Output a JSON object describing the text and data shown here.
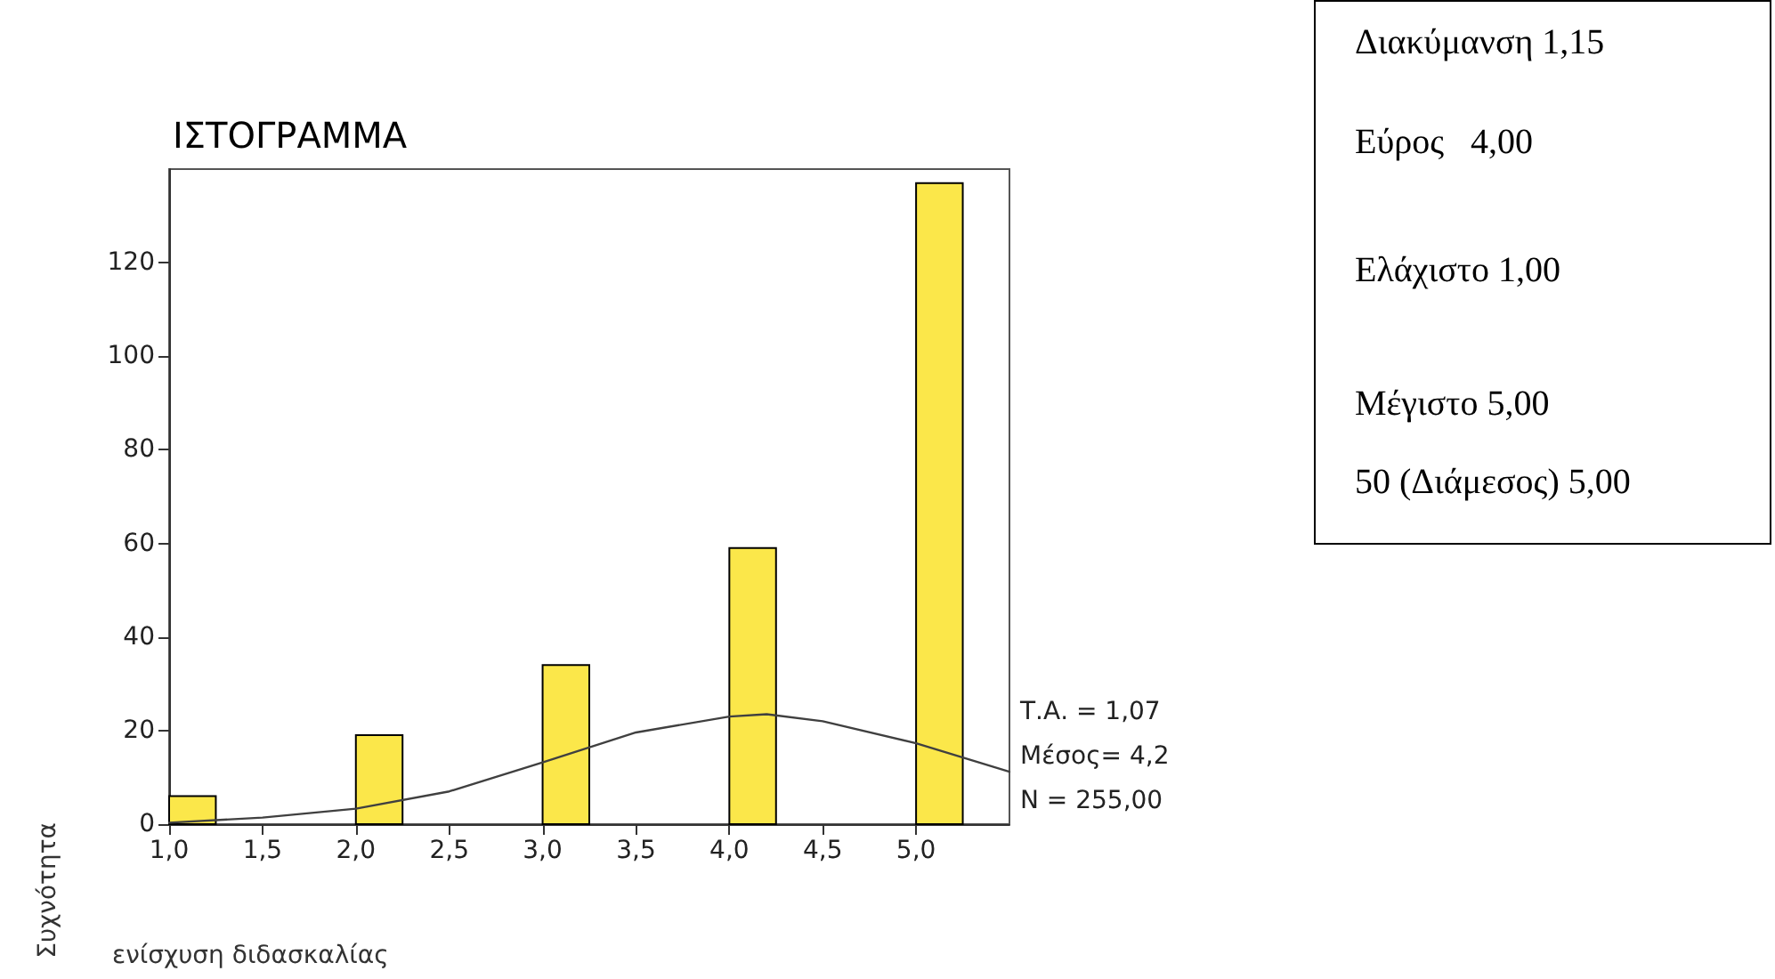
{
  "chart_data": {
    "type": "histogram",
    "title": "ΙΣΤΟΓΡΑΜΜΑ",
    "xlabel": "ενίσχυση διδασκαλίας",
    "ylabel": "Συχνότητα",
    "bins": [
      1.0,
      1.25,
      1.5,
      1.75,
      2.0,
      2.25,
      2.5,
      2.75,
      3.0,
      3.25,
      3.5,
      3.75,
      4.0,
      4.25,
      4.5,
      4.75,
      5.0,
      5.25
    ],
    "values": [
      6,
      0,
      0,
      0,
      19,
      0,
      0,
      0,
      34,
      0,
      0,
      0,
      59,
      0,
      0,
      0,
      137
    ],
    "color": "#fbe74a",
    "series": [
      {
        "type": "line",
        "color": "#404040",
        "x": [
          1.0,
          1.5,
          2.0,
          2.5,
          3.0,
          3.5,
          4.0,
          4.2,
          4.5,
          5.0,
          5.5
        ],
        "values": [
          0.3,
          1.4,
          3.3,
          7,
          13.2,
          19.6,
          23,
          23.5,
          22,
          17.3,
          11.2
        ]
      }
    ],
    "xlim": [
      1.0,
      5.5
    ],
    "xticks": [
      {
        "value": 1,
        "label": "1,0"
      },
      {
        "value": 1.5,
        "label": "1,5"
      },
      {
        "value": 2,
        "label": "2,0"
      },
      {
        "value": 2.5,
        "label": "2,5"
      },
      {
        "value": 3,
        "label": "3,0"
      },
      {
        "value": 3.5,
        "label": "3,5"
      },
      {
        "value": 4,
        "label": "4,0"
      },
      {
        "value": 4.5,
        "label": "4,5"
      },
      {
        "value": 5,
        "label": "5,0"
      }
    ],
    "ylim": [
      0,
      140
    ],
    "yticks": [
      0,
      20,
      40,
      60,
      80,
      100,
      120
    ],
    "grid": false,
    "marker": "none",
    "line_style": "solid",
    "annotations": [
      "Τ.Α. = 1,07",
      "Μέσος= 4,2",
      "N = 255,00",
      "Διακύμανση 1,15",
      "Εύρος   4,00",
      "Ελάχιστο 1,00",
      "Μέγιστο 5,00",
      "50 (Διάμεσος) 5,00"
    ]
  }
}
